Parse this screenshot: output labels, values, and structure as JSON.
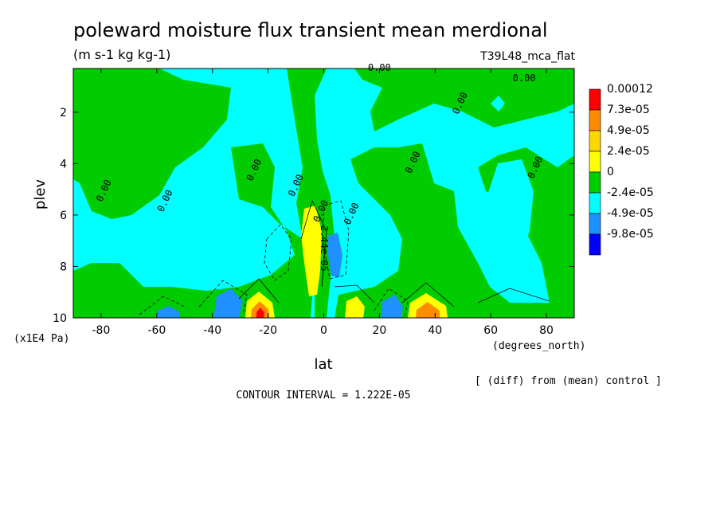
{
  "chart_data": {
    "type": "heatmap",
    "title": "poleward moisture flux transient mean merdional",
    "units": "(m s-1 kg kg-1)",
    "run_label": "T39L48_mca_flat",
    "xlabel": "lat",
    "x_unit": "(degrees_north)",
    "ylabel": "plev",
    "y_unit": "(x1E4 Pa)",
    "xlim": [
      -90,
      90
    ],
    "ylim": [
      10,
      0.3
    ],
    "x_ticks": [
      -80,
      -60,
      -40,
      -20,
      0,
      20,
      40,
      60,
      80
    ],
    "y_ticks": [
      2,
      4,
      6,
      8,
      10
    ],
    "x_tick_labels": [
      "-80",
      "-60",
      "-40",
      "-20",
      "0",
      "20",
      "40",
      "60",
      "80"
    ],
    "y_tick_labels": [
      "2",
      "4",
      "6",
      "8",
      "10"
    ],
    "colorbar": {
      "labels": [
        "0.00012",
        "7.3e-05",
        "4.9e-05",
        "2.4e-05",
        "0",
        "-2.4e-05",
        "-4.9e-05",
        "-9.8e-05"
      ],
      "colors": [
        "#ff0000",
        "#ff8c00",
        "#ffd700",
        "#ffff00",
        "#00cc00",
        "#00ffff",
        "#1e90ff",
        "#0000ff"
      ]
    },
    "contour_labels": [
      {
        "text": "0.00",
        "lat": 20,
        "p": 0.4
      },
      {
        "text": "0.00",
        "lat": 72,
        "p": 0.8
      },
      {
        "text": "0.00",
        "lat": 50,
        "p": 1.7
      },
      {
        "text": "0.00",
        "lat": -78,
        "p": 5.1
      },
      {
        "text": "0.00",
        "lat": -56,
        "p": 5.5
      },
      {
        "text": "0.00",
        "lat": -24,
        "p": 4.3
      },
      {
        "text": "0.00",
        "lat": -9,
        "p": 4.9
      },
      {
        "text": "0.00",
        "lat": 33,
        "p": 4.0
      },
      {
        "text": "0.00",
        "lat": 77,
        "p": 4.2
      },
      {
        "text": "0.00",
        "lat": 11,
        "p": 6.0
      },
      {
        "text": "0.00",
        "lat": 0,
        "p": 5.9
      },
      {
        "text": "2.44e-05",
        "lat": -1,
        "p": 7.3
      }
    ],
    "contour_interval": "CONTOUR INTERVAL = 1.222E-05",
    "note": "[ (diff) from (mean) control ]"
  }
}
